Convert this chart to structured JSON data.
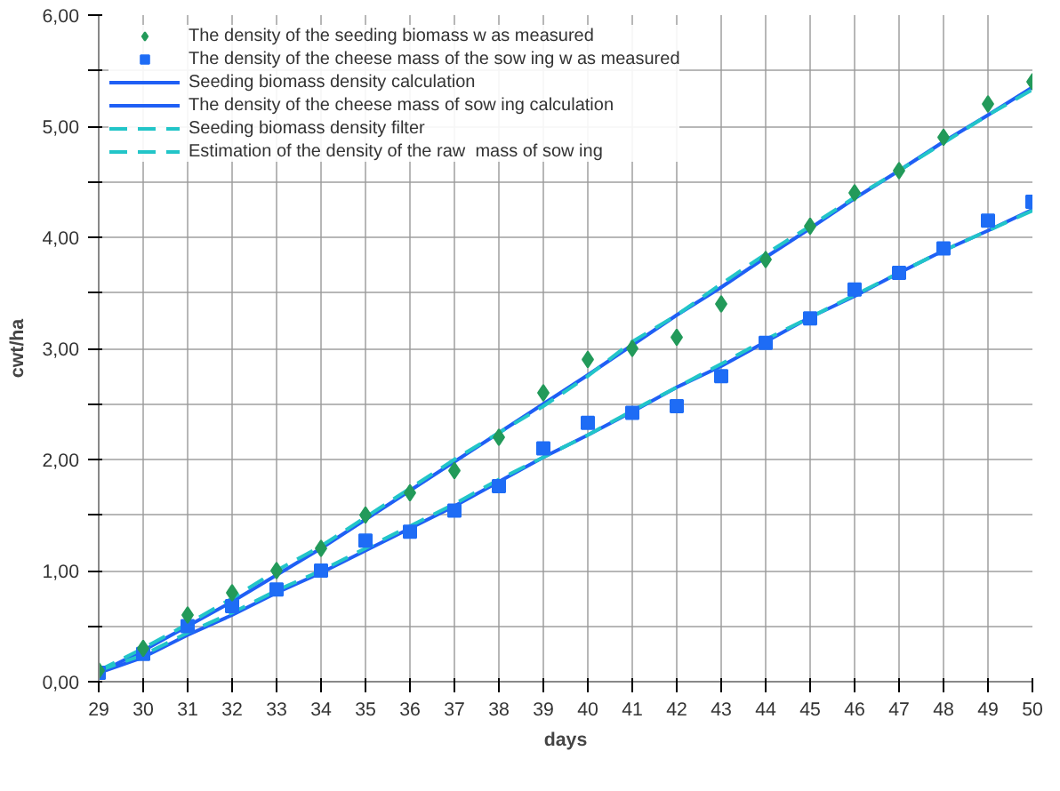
{
  "chart_data": {
    "type": "line",
    "xlabel": "days",
    "ylabel": "cwt/ha",
    "x": [
      29,
      30,
      31,
      32,
      33,
      34,
      35,
      36,
      37,
      38,
      39,
      40,
      41,
      42,
      43,
      44,
      45,
      46,
      47,
      48,
      49,
      50
    ],
    "xlim": [
      29,
      50
    ],
    "xticks": [
      29,
      30,
      31,
      32,
      33,
      34,
      35,
      36,
      37,
      38,
      39,
      40,
      41,
      42,
      43,
      44,
      45,
      46,
      47,
      48,
      49,
      50
    ],
    "ylim": [
      0,
      6
    ],
    "yticks": [
      {
        "value": 0,
        "label": "0,00"
      },
      {
        "value": 0.5,
        "label": null
      },
      {
        "value": 1,
        "label": "1,00"
      },
      {
        "value": 1.5,
        "label": null
      },
      {
        "value": 2,
        "label": "2,00"
      },
      {
        "value": 2.5,
        "label": null
      },
      {
        "value": 3,
        "label": "3,00"
      },
      {
        "value": 3.5,
        "label": null
      },
      {
        "value": 4,
        "label": "4,00"
      },
      {
        "value": 4.5,
        "label": null
      },
      {
        "value": 5,
        "label": "5,00"
      },
      {
        "value": 5.5,
        "label": null
      },
      {
        "value": 6,
        "label": "6,00"
      }
    ],
    "grid": true,
    "legend": "top left",
    "series": [
      {
        "name": "The density of the seeding biomass w as measured",
        "type": "scatter",
        "marker": "diamond",
        "color": "#239a5a",
        "values": [
          0.1,
          0.3,
          0.6,
          0.8,
          1.0,
          1.2,
          1.5,
          1.7,
          1.9,
          2.2,
          2.6,
          2.9,
          3.0,
          3.1,
          3.4,
          3.8,
          4.1,
          4.4,
          4.6,
          4.9,
          5.2,
          5.4
        ]
      },
      {
        "name": "The density of the cheese mass of the sow ing w as measured",
        "type": "scatter",
        "marker": "square",
        "color": "#1e6cf5",
        "values": [
          0.08,
          0.25,
          0.5,
          0.68,
          0.83,
          1.0,
          1.27,
          1.35,
          1.54,
          1.76,
          2.1,
          2.33,
          2.42,
          2.48,
          2.75,
          3.05,
          3.27,
          3.53,
          3.68,
          3.9,
          4.15,
          4.32
        ]
      },
      {
        "name": "Seeding biomass density calculation",
        "line_style": "solid",
        "color": "#1f5ff5",
        "values": [
          0.08,
          0.28,
          0.5,
          0.72,
          0.96,
          1.2,
          1.46,
          1.72,
          1.98,
          2.24,
          2.5,
          2.76,
          3.03,
          3.3,
          3.55,
          3.82,
          4.08,
          4.35,
          4.6,
          4.86,
          5.1,
          5.35
        ]
      },
      {
        "name": "The density of the cheese mass of sow ing calculation",
        "line_style": "solid",
        "color": "#1f5ff5",
        "values": [
          0.08,
          0.22,
          0.42,
          0.6,
          0.8,
          0.98,
          1.18,
          1.38,
          1.58,
          1.8,
          2.02,
          2.22,
          2.43,
          2.65,
          2.84,
          3.06,
          3.28,
          3.47,
          3.68,
          3.88,
          4.06,
          4.25
        ]
      },
      {
        "name": "Seeding biomass density filter",
        "line_style": "dashed",
        "color": "#22c5c8",
        "values": [
          0.1,
          0.3,
          0.52,
          0.75,
          1.0,
          1.22,
          1.48,
          1.74,
          2.0,
          2.24,
          2.48,
          2.75,
          3.06,
          3.3,
          3.58,
          3.85,
          4.1,
          4.36,
          4.6,
          4.85,
          5.1,
          5.33
        ]
      },
      {
        "name": "Estimation of the density of the raw  mass of sow ing",
        "line_style": "dashed",
        "color": "#22c5c8",
        "values": [
          0.1,
          0.24,
          0.44,
          0.62,
          0.82,
          1.0,
          1.2,
          1.4,
          1.6,
          1.82,
          2.02,
          2.22,
          2.44,
          2.65,
          2.86,
          3.08,
          3.28,
          3.48,
          3.68,
          3.88,
          4.06,
          4.24
        ]
      }
    ]
  }
}
